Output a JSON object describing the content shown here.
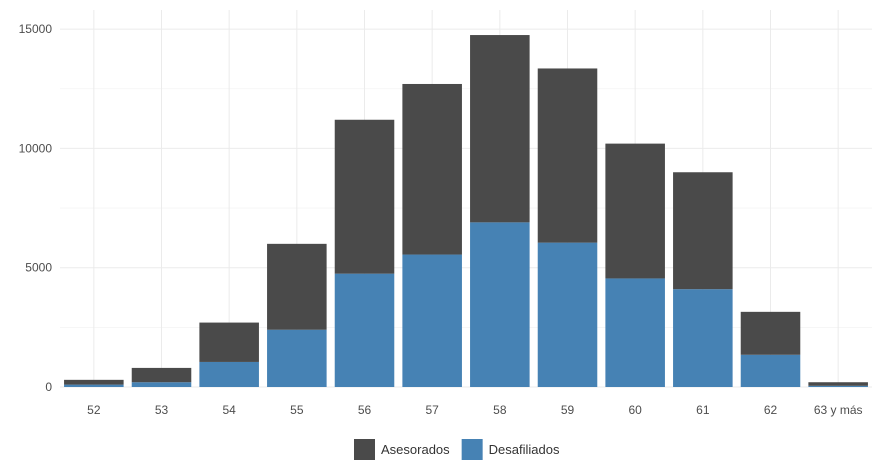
{
  "chart_data": {
    "type": "bar",
    "stacked": true,
    "categories": [
      "52",
      "53",
      "54",
      "55",
      "56",
      "57",
      "58",
      "59",
      "60",
      "61",
      "62",
      "63 y más"
    ],
    "series": [
      {
        "name": "Asesorados",
        "color": "#4a4a4a",
        "values": [
          200,
          600,
          1650,
          3600,
          6450,
          7150,
          7850,
          7300,
          5650,
          4900,
          1800,
          150
        ]
      },
      {
        "name": "Desafiliados",
        "color": "#4682b4",
        "values": [
          100,
          200,
          1050,
          2400,
          4750,
          5550,
          6900,
          6050,
          4550,
          4100,
          1350,
          50
        ]
      }
    ],
    "y_ticks": [
      "0",
      "5000",
      "10000",
      "15000"
    ],
    "ylim": [
      0,
      15800
    ],
    "grid": true,
    "legend_position": "bottom",
    "title": "",
    "xlabel": "",
    "ylabel": ""
  }
}
